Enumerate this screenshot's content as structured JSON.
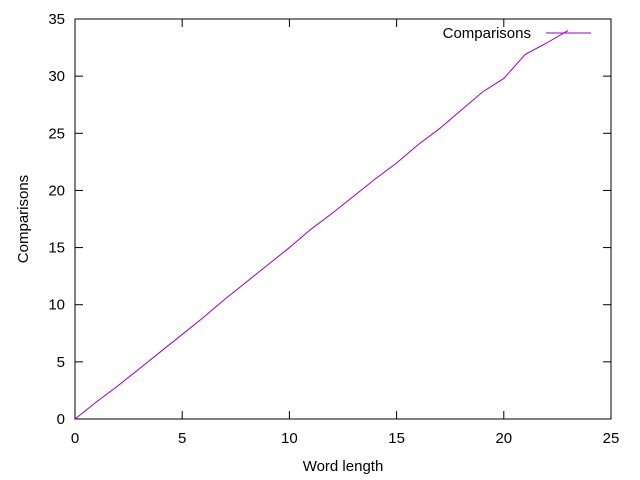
{
  "chart_data": {
    "type": "line",
    "title": "",
    "xlabel": "Word length",
    "ylabel": "Comparisons",
    "xlim": [
      0,
      25
    ],
    "ylim": [
      0,
      35
    ],
    "xticks": [
      "0",
      "5",
      "10",
      "15",
      "20",
      "25"
    ],
    "yticks": [
      "0",
      "5",
      "10",
      "15",
      "20",
      "25",
      "30",
      "35"
    ],
    "grid": false,
    "legend_position": "top-right",
    "series": [
      {
        "name": "Comparisons",
        "color": "#9400d3",
        "x": [
          0,
          1,
          2,
          3,
          4,
          5,
          6,
          7,
          8,
          9,
          10,
          11,
          12,
          13,
          14,
          15,
          16,
          17,
          18,
          19,
          20,
          21,
          22,
          23
        ],
        "y": [
          0,
          1.5,
          2.9,
          4.4,
          5.9,
          7.4,
          8.9,
          10.5,
          12.0,
          13.5,
          15.0,
          16.6,
          18.0,
          19.5,
          21.0,
          22.4,
          24.0,
          25.4,
          27.0,
          28.6,
          29.8,
          31.9,
          32.9,
          34.0
        ]
      }
    ]
  }
}
